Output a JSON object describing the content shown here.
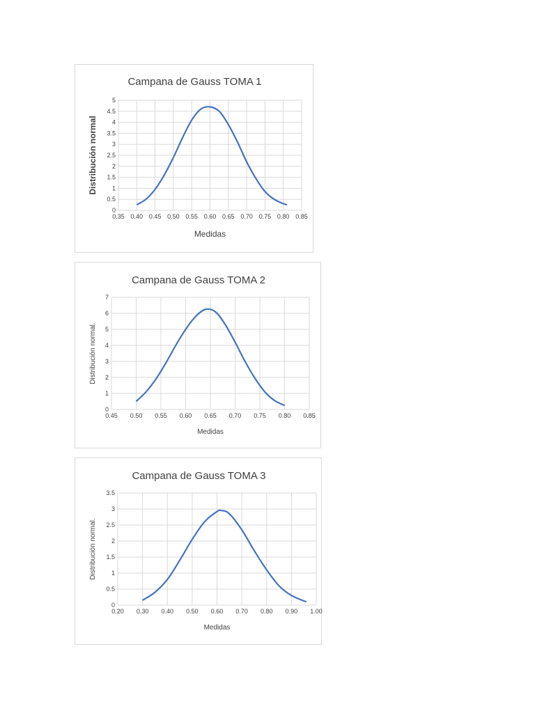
{
  "chart_data": [
    {
      "type": "line",
      "title": "Campana de Gauss TOMA 1",
      "xlabel": "Medidas",
      "ylabel": "Distribución normal",
      "xlim": [
        0.35,
        0.85
      ],
      "ylim": [
        0,
        5
      ],
      "x_ticks": [
        "0.35",
        "0.40",
        "0.45",
        "0.50",
        "0.55",
        "0.60",
        "0.65",
        "0.70",
        "0.75",
        "0.80",
        "0.85"
      ],
      "y_ticks": [
        "0",
        "0.5",
        "1",
        "1.5",
        "2",
        "2.5",
        "3",
        "3.5",
        "4",
        "4.5",
        "5"
      ],
      "grid": true,
      "series": [
        {
          "color": "#4472c4",
          "x": [
            0.4,
            0.425,
            0.45,
            0.475,
            0.5,
            0.525,
            0.55,
            0.575,
            0.6,
            0.625,
            0.65,
            0.675,
            0.7,
            0.725,
            0.75,
            0.775,
            0.8,
            0.81
          ],
          "y": [
            0.25,
            0.5,
            0.95,
            1.6,
            2.4,
            3.3,
            4.1,
            4.6,
            4.7,
            4.5,
            3.9,
            3.1,
            2.2,
            1.45,
            0.85,
            0.5,
            0.3,
            0.25
          ]
        }
      ]
    },
    {
      "type": "line",
      "title": "Campana de Gauss TOMA 2",
      "xlabel": "Medidas",
      "ylabel": "Distribución normal.",
      "xlim": [
        0.45,
        0.85
      ],
      "ylim": [
        0,
        7
      ],
      "x_ticks": [
        "0.45",
        "0.50",
        "0.55",
        "0.60",
        "0.65",
        "0.70",
        "0.75",
        "0.80",
        "0.85"
      ],
      "y_ticks": [
        "0",
        "1",
        "2",
        "3",
        "4",
        "5",
        "6",
        "7"
      ],
      "grid": true,
      "series": [
        {
          "color": "#4472c4",
          "x": [
            0.5,
            0.52,
            0.54,
            0.56,
            0.58,
            0.6,
            0.62,
            0.64,
            0.66,
            0.68,
            0.7,
            0.72,
            0.74,
            0.76,
            0.78,
            0.8
          ],
          "y": [
            0.5,
            1.1,
            1.9,
            2.9,
            4.0,
            5.0,
            5.8,
            6.25,
            6.1,
            5.3,
            4.2,
            3.0,
            1.95,
            1.1,
            0.55,
            0.25
          ]
        }
      ]
    },
    {
      "type": "line",
      "title": "Campana de Gauss TOMA 3",
      "xlabel": "Medidas",
      "ylabel": "Distribución normal.",
      "xlim": [
        0.2,
        1.0
      ],
      "ylim": [
        0,
        3.5
      ],
      "x_ticks": [
        "0.20",
        "0.30",
        "0.40",
        "0.50",
        "0.60",
        "0.70",
        "0.80",
        "0.90",
        "1.00"
      ],
      "y_ticks": [
        "0",
        "0.5",
        "1",
        "1.5",
        "2",
        "2.5",
        "3",
        "3.5"
      ],
      "grid": true,
      "series": [
        {
          "color": "#4472c4",
          "x": [
            0.3,
            0.35,
            0.4,
            0.45,
            0.5,
            0.55,
            0.6,
            0.62,
            0.65,
            0.7,
            0.75,
            0.8,
            0.85,
            0.9,
            0.96
          ],
          "y": [
            0.15,
            0.4,
            0.8,
            1.4,
            2.05,
            2.6,
            2.92,
            2.95,
            2.85,
            2.35,
            1.7,
            1.1,
            0.6,
            0.3,
            0.1
          ]
        }
      ]
    }
  ]
}
